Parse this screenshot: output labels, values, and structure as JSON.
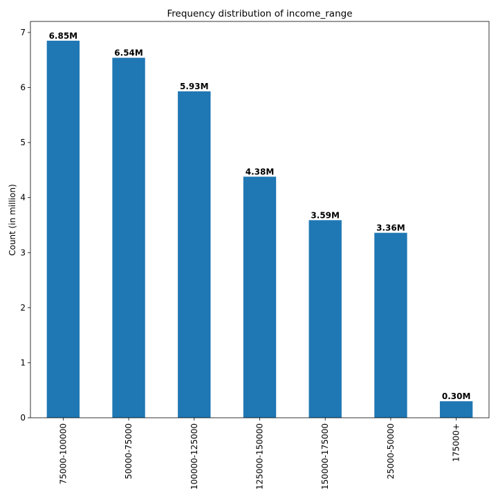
{
  "chart_data": {
    "type": "bar",
    "title": "Frequency distribution of income_range",
    "xlabel": "",
    "ylabel": "Count (in million)",
    "categories": [
      "75000-100000",
      "50000-75000",
      "100000-125000",
      "125000-150000",
      "150000-175000",
      "25000-50000",
      "175000+"
    ],
    "values": [
      6.85,
      6.54,
      5.93,
      4.38,
      3.59,
      3.36,
      0.3
    ],
    "data_labels": [
      "6.85M",
      "6.54M",
      "5.93M",
      "4.38M",
      "3.59M",
      "3.36M",
      "0.30M"
    ],
    "ylim": [
      0,
      7.2
    ],
    "yticks": [
      0,
      1,
      2,
      3,
      4,
      5,
      6,
      7
    ],
    "bar_color": "#1f77b4",
    "grid": false,
    "legend": "none"
  }
}
